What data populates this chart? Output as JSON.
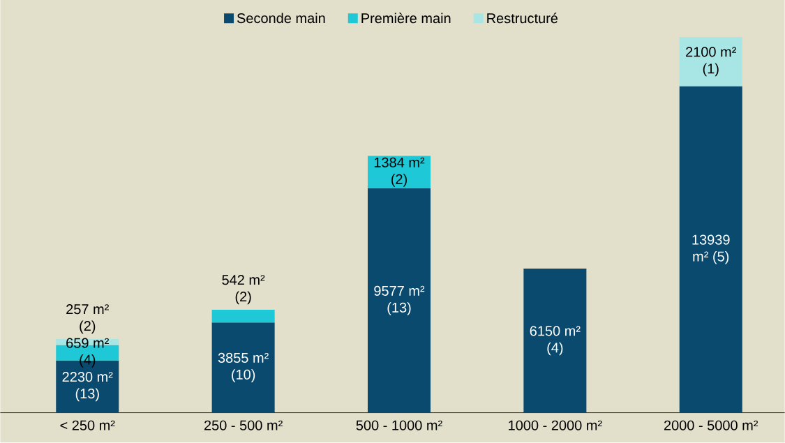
{
  "chart_data": {
    "type": "bar",
    "stacked": true,
    "legend": "top",
    "categories": [
      "< 250 m²",
      "250 - 500 m²",
      "500 - 1000 m²",
      "1000 - 2000 m²",
      "2000 - 5000 m²"
    ],
    "series": [
      {
        "name": "Seconde main",
        "color": "#0b4a6f",
        "values": [
          2230,
          3855,
          9577,
          6150,
          13939
        ],
        "value_labels": [
          "2230 m² (13)",
          "3855 m² (10)",
          "9577 m² (13)",
          "6150 m² (4)",
          "13939 m² (5)"
        ]
      },
      {
        "name": "Première main",
        "color": "#1ec8d6",
        "values": [
          659,
          542,
          1384,
          null,
          null
        ],
        "value_labels": [
          "659 m² (4)",
          "542 m² (2)",
          "1384 m² (2)",
          null,
          null
        ]
      },
      {
        "name": "Restructuré",
        "color": "#a8e6e6",
        "values": [
          257,
          null,
          null,
          null,
          2100
        ],
        "value_labels": [
          "257 m² (2)",
          null,
          null,
          null,
          "2100 m² (1)"
        ]
      }
    ]
  }
}
